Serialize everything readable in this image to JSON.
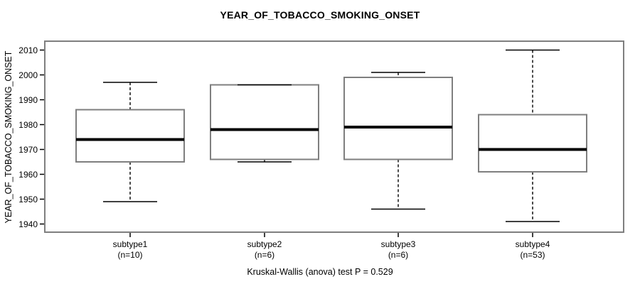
{
  "title": "YEAR_OF_TOBACCO_SMOKING_ONSET",
  "caption": "Kruskal-Wallis (anova) test P = 0.529",
  "colors": {
    "background": "#ffffff",
    "text": "#000000",
    "frame": "#7f7f7f",
    "box_border": "#7f7f7f",
    "box_fill": "#ffffff",
    "whisker": "#000000",
    "median": "#000000",
    "tick": "#000000"
  },
  "chart_data": {
    "type": "boxplot",
    "title": "YEAR_OF_TOBACCO_SMOKING_ONSET",
    "ylabel": "YEAR_OF_TOBACCO_SMOKING_ONSET",
    "xlabel": "",
    "grid": false,
    "legend_position": "none",
    "y_ticks": [
      1940,
      1950,
      1960,
      1970,
      1980,
      1990,
      2000,
      2010
    ],
    "ylim": [
      1936,
      2014
    ],
    "categories": [
      "subtype1",
      "subtype2",
      "subtype3",
      "subtype4"
    ],
    "group_size_labels": [
      "(n=10)",
      "(n=6)",
      "(n=6)",
      "(n=53)"
    ],
    "series": [
      {
        "name": "subtype1",
        "n": 10,
        "min": 1949,
        "q1": 1965,
        "median": 1974,
        "q3": 1986,
        "max": 1997
      },
      {
        "name": "subtype2",
        "n": 6,
        "min": 1965,
        "q1": 1966,
        "median": 1978,
        "q3": 1996,
        "max": 1996
      },
      {
        "name": "subtype3",
        "n": 6,
        "min": 1946,
        "q1": 1966,
        "median": 1979,
        "q3": 1999,
        "max": 2001
      },
      {
        "name": "subtype4",
        "n": 53,
        "min": 1941,
        "q1": 1961,
        "median": 1970,
        "q3": 1984,
        "max": 2010
      }
    ],
    "annotation": "Kruskal-Wallis (anova) test P = 0.529"
  }
}
